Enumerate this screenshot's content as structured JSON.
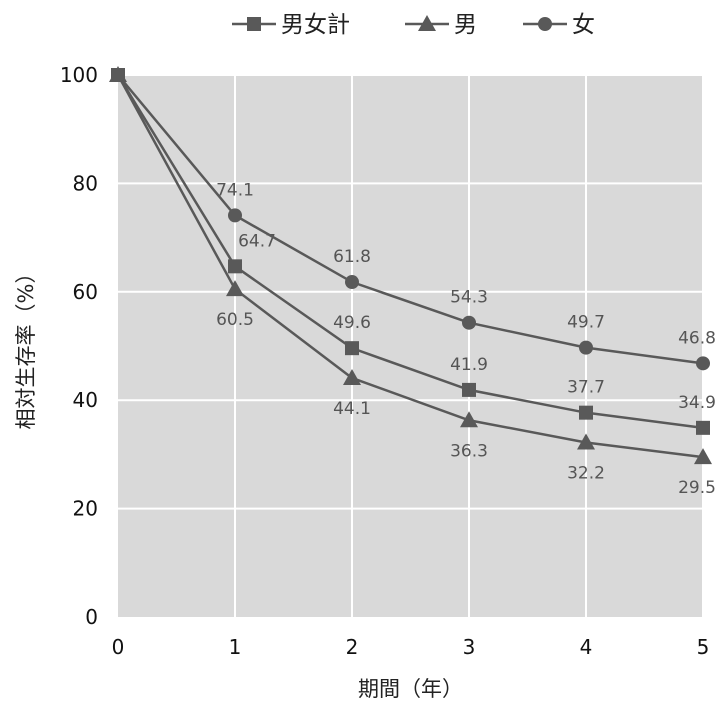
{
  "chart_data": {
    "type": "line",
    "title": "",
    "xlabel": "期間（年）",
    "ylabel": "相対生存率（%）",
    "x": [
      0,
      1,
      2,
      3,
      4,
      5
    ],
    "xlim": [
      0,
      5
    ],
    "ylim": [
      0,
      100
    ],
    "yticks": [
      0,
      20,
      40,
      60,
      80,
      100
    ],
    "grid": true,
    "legend_position": "top",
    "series": [
      {
        "name": "男女計",
        "marker": "square",
        "values": [
          100,
          64.7,
          49.6,
          41.9,
          37.7,
          34.9
        ],
        "labels": [
          "",
          "64.7",
          "49.6",
          "41.9",
          "37.7",
          "34.9"
        ],
        "label_position": "above"
      },
      {
        "name": "男",
        "marker": "triangle",
        "values": [
          100,
          60.5,
          44.1,
          36.3,
          32.2,
          29.5
        ],
        "labels": [
          "",
          "60.5",
          "44.1",
          "36.3",
          "32.2",
          "29.5"
        ],
        "label_position": "below"
      },
      {
        "name": "女",
        "marker": "circle",
        "values": [
          100,
          74.1,
          61.8,
          54.3,
          49.7,
          46.8
        ],
        "labels": [
          "",
          "74.1",
          "61.8",
          "54.3",
          "49.7",
          "46.8"
        ],
        "label_position": "above"
      }
    ],
    "colors": {
      "plot_background": "#d9d9d9",
      "gridline": "#ffffff",
      "series_line": "#595959",
      "marker": "#595959"
    }
  }
}
